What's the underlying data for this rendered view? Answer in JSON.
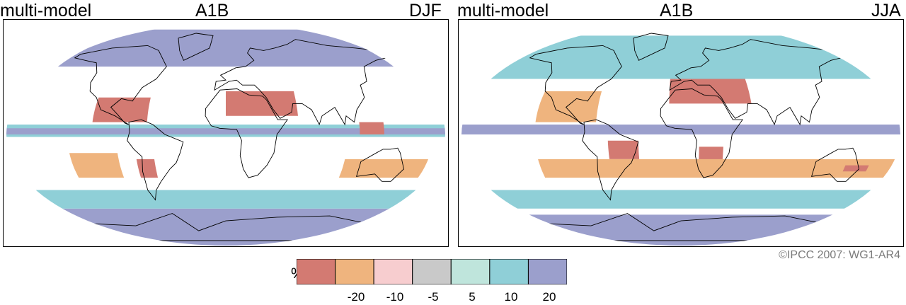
{
  "panels": [
    {
      "model_label": "multi-model",
      "scenario_label": "A1B",
      "season_label": "DJF",
      "regions": [
        {
          "type": "wetter_high",
          "lon": [
            -170,
            170
          ],
          "lat": [
            55,
            85
          ]
        },
        {
          "type": "wetter_high",
          "lon": [
            -180,
            180
          ],
          "lat": [
            -90,
            -60
          ]
        },
        {
          "type": "wetter_mid",
          "lon": [
            -180,
            180
          ],
          "lat": [
            -60,
            -45
          ]
        },
        {
          "type": "wetter_mid",
          "lon": [
            -180,
            180
          ],
          "lat": [
            -2,
            8
          ]
        },
        {
          "type": "wetter_high",
          "lon": [
            -180,
            180
          ],
          "lat": [
            0,
            5
          ]
        },
        {
          "type": "drier_high",
          "lon": [
            -110,
            -65
          ],
          "lat": [
            10,
            30
          ]
        },
        {
          "type": "drier_high",
          "lon": [
            0,
            60
          ],
          "lat": [
            15,
            35
          ]
        },
        {
          "type": "drier_mid",
          "lon": [
            -130,
            -90
          ],
          "lat": [
            -35,
            -15
          ]
        },
        {
          "type": "drier_high",
          "lon": [
            -75,
            -60
          ],
          "lat": [
            -35,
            -20
          ]
        },
        {
          "type": "drier_mid",
          "lon": [
            100,
            170
          ],
          "lat": [
            -35,
            -20
          ]
        },
        {
          "type": "drier_high",
          "lon": [
            110,
            130
          ],
          "lat": [
            0,
            10
          ]
        }
      ]
    },
    {
      "model_label": "multi-model",
      "scenario_label": "A1B",
      "season_label": "JJA",
      "regions": [
        {
          "type": "wetter_mid",
          "lon": [
            -180,
            180
          ],
          "lat": [
            45,
            80
          ]
        },
        {
          "type": "wetter_high",
          "lon": [
            -180,
            180
          ],
          "lat": [
            -90,
            -65
          ]
        },
        {
          "type": "wetter_mid",
          "lon": [
            -180,
            180
          ],
          "lat": [
            -60,
            -45
          ]
        },
        {
          "type": "wetter_high",
          "lon": [
            -180,
            180
          ],
          "lat": [
            0,
            8
          ]
        },
        {
          "type": "drier_high",
          "lon": [
            -10,
            60
          ],
          "lat": [
            25,
            45
          ]
        },
        {
          "type": "drier_mid",
          "lon": [
            -120,
            -70
          ],
          "lat": [
            10,
            35
          ]
        },
        {
          "type": "drier_high",
          "lon": [
            -60,
            -35
          ],
          "lat": [
            -20,
            -5
          ]
        },
        {
          "type": "drier_high",
          "lon": [
            15,
            35
          ],
          "lat": [
            -25,
            -10
          ]
        },
        {
          "type": "drier_mid",
          "lon": [
            -120,
            180
          ],
          "lat": [
            -35,
            -20
          ]
        },
        {
          "type": "drier_high",
          "lon": [
            140,
            160
          ],
          "lat": [
            -30,
            -25
          ]
        }
      ]
    }
  ],
  "legend": {
    "unit": "%",
    "bins": [
      {
        "color": "#d37a72"
      },
      {
        "color": "#efb47e"
      },
      {
        "color": "#f7cdcf"
      },
      {
        "color": "#c9c9c9"
      },
      {
        "color": "#bfe5dc"
      },
      {
        "color": "#8fcfd7"
      },
      {
        "color": "#9b9fcc"
      }
    ],
    "tick_labels": [
      "-20",
      "-10",
      "-5",
      "5",
      "10",
      "20"
    ]
  },
  "region_colors": {
    "drier_high": "#d37a72",
    "drier_mid": "#efb47e",
    "drier_low": "#f7cdcf",
    "neutral": "#c9c9c9",
    "wetter_low": "#bfe5dc",
    "wetter_mid": "#8fcfd7",
    "wetter_high": "#9b9fcc"
  },
  "copyright": "©IPCC 2007: WG1-AR4"
}
